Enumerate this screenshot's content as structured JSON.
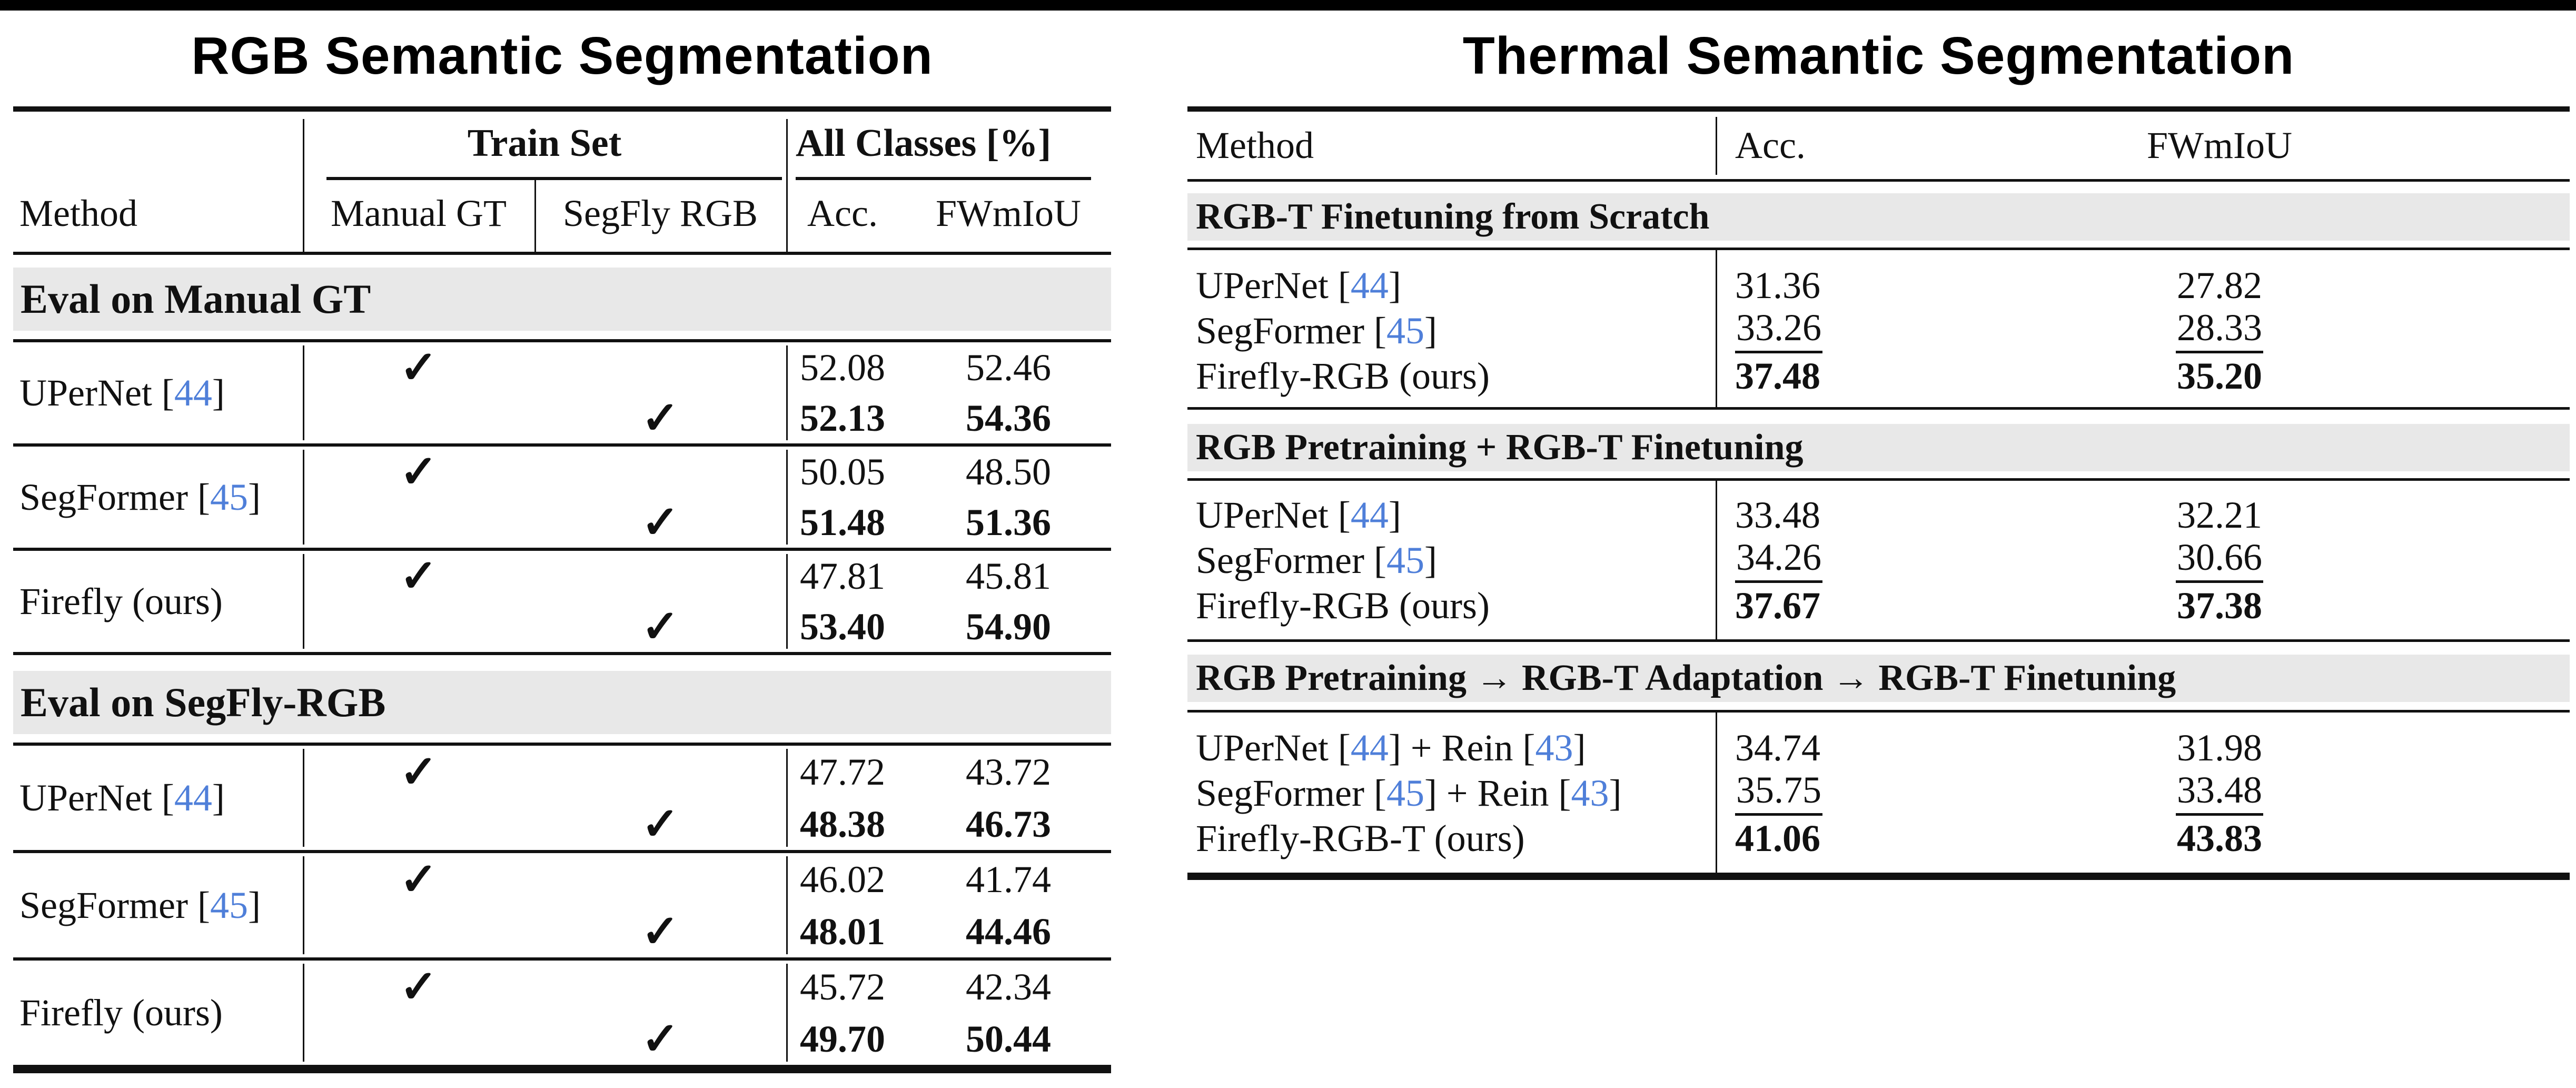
{
  "colors": {
    "cite_blue": "#4f7fd9",
    "band_bg": "#e8e8e8",
    "rule_black": "#111111"
  },
  "check_glyph": "✓",
  "left_table": {
    "title": "RGB Semantic Segmentation",
    "header": {
      "train_set": "Train Set",
      "all_classes": "All Classes [%]",
      "method": "Method",
      "manual_gt": "Manual GT",
      "segfly_rgb": "SegFly RGB",
      "acc": "Acc.",
      "fwmiou": "FWmIoU"
    },
    "sections": [
      {
        "band": "Eval on Manual GT",
        "blocks": [
          {
            "method": [
              [
                "t",
                "UPerNet ["
              ],
              [
                "c",
                "44"
              ],
              [
                "t",
                "]"
              ]
            ],
            "rows": [
              {
                "train_set": "manual_gt",
                "acc": "52.08",
                "fwmiou": "52.46",
                "style": "plain"
              },
              {
                "train_set": "segfly_rgb",
                "acc": "52.13",
                "fwmiou": "54.36",
                "style": "bold"
              }
            ]
          },
          {
            "method": [
              [
                "t",
                "SegFormer ["
              ],
              [
                "c",
                "45"
              ],
              [
                "t",
                "]"
              ]
            ],
            "rows": [
              {
                "train_set": "manual_gt",
                "acc": "50.05",
                "fwmiou": "48.50",
                "style": "plain"
              },
              {
                "train_set": "segfly_rgb",
                "acc": "51.48",
                "fwmiou": "51.36",
                "style": "bold"
              }
            ]
          },
          {
            "method": [
              [
                "t",
                "Firefly (ours)"
              ]
            ],
            "rows": [
              {
                "train_set": "manual_gt",
                "acc": "47.81",
                "fwmiou": "45.81",
                "style": "plain"
              },
              {
                "train_set": "segfly_rgb",
                "acc": "53.40",
                "fwmiou": "54.90",
                "style": "bold"
              }
            ]
          }
        ]
      },
      {
        "band": "Eval on SegFly-RGB",
        "blocks": [
          {
            "method": [
              [
                "t",
                "UPerNet ["
              ],
              [
                "c",
                "44"
              ],
              [
                "t",
                "]"
              ]
            ],
            "rows": [
              {
                "train_set": "manual_gt",
                "acc": "47.72",
                "fwmiou": "43.72",
                "style": "plain"
              },
              {
                "train_set": "segfly_rgb",
                "acc": "48.38",
                "fwmiou": "46.73",
                "style": "bold"
              }
            ]
          },
          {
            "method": [
              [
                "t",
                "SegFormer ["
              ],
              [
                "c",
                "45"
              ],
              [
                "t",
                "]"
              ]
            ],
            "rows": [
              {
                "train_set": "manual_gt",
                "acc": "46.02",
                "fwmiou": "41.74",
                "style": "plain"
              },
              {
                "train_set": "segfly_rgb",
                "acc": "48.01",
                "fwmiou": "44.46",
                "style": "bold"
              }
            ]
          },
          {
            "method": [
              [
                "t",
                "Firefly (ours)"
              ]
            ],
            "rows": [
              {
                "train_set": "manual_gt",
                "acc": "45.72",
                "fwmiou": "42.34",
                "style": "plain"
              },
              {
                "train_set": "segfly_rgb",
                "acc": "49.70",
                "fwmiou": "50.44",
                "style": "bold"
              }
            ]
          }
        ]
      }
    ]
  },
  "right_table": {
    "title": "Thermal Semantic Segmentation",
    "header": {
      "method": "Method",
      "acc": "Acc.",
      "fwmiou": "FWmIoU"
    },
    "sections": [
      {
        "band": "RGB-T Finetuning from Scratch",
        "rows": [
          {
            "method": [
              [
                "t",
                "UPerNet ["
              ],
              [
                "c",
                "44"
              ],
              [
                "t",
                "]"
              ]
            ],
            "acc": "31.36",
            "fwmiou": "27.82",
            "style": "plain"
          },
          {
            "method": [
              [
                "t",
                "SegFormer ["
              ],
              [
                "c",
                "45"
              ],
              [
                "t",
                "]"
              ]
            ],
            "acc": "33.26",
            "fwmiou": "28.33",
            "style": "underline"
          },
          {
            "method": [
              [
                "t",
                "Firefly-RGB (ours)"
              ]
            ],
            "acc": "37.48",
            "fwmiou": "35.20",
            "style": "bold"
          }
        ]
      },
      {
        "band": "RGB Pretraining + RGB-T Finetuning",
        "rows": [
          {
            "method": [
              [
                "t",
                "UPerNet ["
              ],
              [
                "c",
                "44"
              ],
              [
                "t",
                "]"
              ]
            ],
            "acc": "33.48",
            "fwmiou": "32.21",
            "style": "plain"
          },
          {
            "method": [
              [
                "t",
                "SegFormer ["
              ],
              [
                "c",
                "45"
              ],
              [
                "t",
                "]"
              ]
            ],
            "acc": "34.26",
            "fwmiou": "30.66",
            "style": "underline"
          },
          {
            "method": [
              [
                "t",
                "Firefly-RGB (ours)"
              ]
            ],
            "acc": "37.67",
            "fwmiou": "37.38",
            "style": "bold"
          }
        ]
      },
      {
        "band": "RGB Pretraining → RGB-T Adaptation → RGB-T Finetuning",
        "rows": [
          {
            "method": [
              [
                "t",
                "UPerNet ["
              ],
              [
                "c",
                "44"
              ],
              [
                "t",
                "] + Rein ["
              ],
              [
                "c",
                "43"
              ],
              [
                "t",
                "]"
              ]
            ],
            "acc": "34.74",
            "fwmiou": "31.98",
            "style": "plain"
          },
          {
            "method": [
              [
                "t",
                "SegFormer ["
              ],
              [
                "c",
                "45"
              ],
              [
                "t",
                "] + Rein ["
              ],
              [
                "c",
                "43"
              ],
              [
                "t",
                "]"
              ]
            ],
            "acc": "35.75",
            "fwmiou": "33.48",
            "style": "underline"
          },
          {
            "method": [
              [
                "t",
                "Firefly-RGB-T (ours)"
              ]
            ],
            "acc": "41.06",
            "fwmiou": "43.83",
            "style": "bold"
          }
        ]
      }
    ]
  }
}
